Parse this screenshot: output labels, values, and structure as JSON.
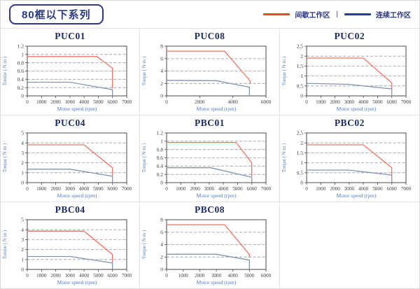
{
  "page": {
    "title": "80框以下系列",
    "legend": {
      "items": [
        {
          "label": "间歇工作区",
          "color": "#e8492e"
        },
        {
          "label": "连续工作区",
          "color": "#27418f"
        }
      ],
      "separator": "|"
    }
  },
  "colors": {
    "navy": "#2c3a85",
    "chart_title": "#1c2b5e",
    "tick": "#3a3a46",
    "axis_label": "#4a7abf",
    "grid": "#999999",
    "plot_border": "#4a4a4a",
    "cell_border": "#e3e3e3",
    "red_series": "#ef7163",
    "blue_series": "#8592b5"
  },
  "chart_data": [
    {
      "type": "line",
      "title": "PUC01",
      "xlabel": "Motor speed (rpm)",
      "ylabel": "Torque ( N·m )",
      "xlim": [
        0,
        7000
      ],
      "ylim": [
        0,
        1.2
      ],
      "xticks": [
        0,
        1000,
        2000,
        3000,
        4000,
        5000,
        6000,
        7000
      ],
      "yticks": [
        0,
        0.2,
        0.4,
        0.6,
        0.8,
        1,
        1.2
      ],
      "grid": "horizontal-dashed",
      "legend_position": "none",
      "series": [
        {
          "name": "间歇工作区",
          "color": "#ef7163",
          "points": [
            [
              0,
              0.95
            ],
            [
              4900,
              0.95
            ],
            [
              6000,
              0.67
            ],
            [
              6000,
              0.18
            ]
          ]
        },
        {
          "name": "连续工作区",
          "color": "#8592b5",
          "points": [
            [
              0,
              0.33
            ],
            [
              3000,
              0.33
            ],
            [
              6000,
              0.15
            ],
            [
              6000,
              0
            ]
          ]
        }
      ]
    },
    {
      "type": "line",
      "title": "PUC08",
      "xlabel": "Motor speed (rpm)",
      "ylabel": "Torque ( N·m )",
      "xlim": [
        0,
        6000
      ],
      "ylim": [
        0,
        8
      ],
      "xticks": [
        0,
        2000,
        4000,
        6000
      ],
      "yticks": [
        0,
        2,
        4,
        6,
        8
      ],
      "grid": "horizontal-dashed",
      "legend_position": "none",
      "series": [
        {
          "name": "间歇工作区",
          "color": "#ef7163",
          "points": [
            [
              0,
              7.2
            ],
            [
              3500,
              7.2
            ],
            [
              5050,
              2.4
            ],
            [
              5050,
              2.0
            ]
          ]
        },
        {
          "name": "连续工作区",
          "color": "#8592b5",
          "points": [
            [
              0,
              2.5
            ],
            [
              3000,
              2.45
            ],
            [
              5000,
              1.4
            ],
            [
              5000,
              0
            ]
          ]
        }
      ]
    },
    {
      "type": "line",
      "title": "PUC02",
      "xlabel": "Motor speed (rpm)",
      "ylabel": "Torque ( N·m )",
      "xlim": [
        0,
        7000
      ],
      "ylim": [
        0,
        2.5
      ],
      "xticks": [
        0,
        1000,
        2000,
        3000,
        4000,
        5000,
        6000,
        7000
      ],
      "yticks": [
        0,
        0.5,
        1,
        1.5,
        2,
        2.5
      ],
      "grid": "horizontal-dashed",
      "legend_position": "none",
      "series": [
        {
          "name": "间歇工作区",
          "color": "#ef7163",
          "points": [
            [
              0,
              1.9
            ],
            [
              4000,
              1.9
            ],
            [
              6000,
              0.65
            ],
            [
              6000,
              0.35
            ]
          ]
        },
        {
          "name": "连续工作区",
          "color": "#8592b5",
          "points": [
            [
              0,
              0.63
            ],
            [
              3000,
              0.58
            ],
            [
              6000,
              0.35
            ],
            [
              6000,
              0
            ]
          ]
        }
      ]
    },
    {
      "type": "line",
      "title": "PUC04",
      "xlabel": "Motor speed (rpm)",
      "ylabel": "Torque ( N·m )",
      "xlim": [
        0,
        7000
      ],
      "ylim": [
        0,
        5
      ],
      "xticks": [
        0,
        1000,
        2000,
        3000,
        4000,
        5000,
        6000,
        7000
      ],
      "yticks": [
        0,
        1,
        2,
        3,
        4,
        5
      ],
      "grid": "horizontal-dashed",
      "legend_position": "none",
      "series": [
        {
          "name": "间歇工作区",
          "color": "#ef7163",
          "points": [
            [
              0,
              3.8
            ],
            [
              4000,
              3.8
            ],
            [
              6000,
              1.5
            ],
            [
              6000,
              0.7
            ]
          ]
        },
        {
          "name": "连续工作区",
          "color": "#8592b5",
          "points": [
            [
              0,
              1.35
            ],
            [
              3000,
              1.35
            ],
            [
              6000,
              0.65
            ],
            [
              6000,
              0
            ]
          ]
        }
      ]
    },
    {
      "type": "line",
      "title": "PBC01",
      "xlabel": "Motor speed (rpm)",
      "ylabel": "Torque ( N·m )",
      "xlim": [
        0,
        7000
      ],
      "ylim": [
        0,
        1.2
      ],
      "xticks": [
        0,
        1000,
        2000,
        3000,
        4000,
        5000,
        6000,
        7000
      ],
      "yticks": [
        0,
        0.2,
        0.4,
        0.6,
        0.8,
        1,
        1.2
      ],
      "grid": "horizontal-dashed",
      "legend_position": "none",
      "series": [
        {
          "name": "间歇工作区",
          "color": "#ef7163",
          "points": [
            [
              0,
              0.97
            ],
            [
              4900,
              0.97
            ],
            [
              6000,
              0.48
            ],
            [
              6000,
              0.15
            ]
          ]
        },
        {
          "name": "连续工作区",
          "color": "#8592b5",
          "points": [
            [
              0,
              0.36
            ],
            [
              3100,
              0.36
            ],
            [
              6000,
              0.13
            ],
            [
              6000,
              0
            ]
          ]
        }
      ]
    },
    {
      "type": "line",
      "title": "PBC02",
      "xlabel": "Motor speed (rpm)",
      "ylabel": "Torque ( N·m )",
      "xlim": [
        0,
        7000
      ],
      "ylim": [
        0,
        2.5
      ],
      "xticks": [
        0,
        1000,
        2000,
        3000,
        4000,
        5000,
        6000,
        7000
      ],
      "yticks": [
        0,
        0.5,
        1,
        1.5,
        2,
        2.5
      ],
      "grid": "horizontal-dashed",
      "legend_position": "none",
      "series": [
        {
          "name": "间歇工作区",
          "color": "#ef7163",
          "points": [
            [
              0,
              1.9
            ],
            [
              4000,
              1.9
            ],
            [
              6000,
              0.75
            ],
            [
              6000,
              0.4
            ]
          ]
        },
        {
          "name": "连续工作区",
          "color": "#8592b5",
          "points": [
            [
              0,
              0.63
            ],
            [
              3000,
              0.63
            ],
            [
              6000,
              0.38
            ],
            [
              6000,
              0
            ]
          ]
        }
      ]
    },
    {
      "type": "line",
      "title": "PBC04",
      "xlabel": "Motor speed (rpm)",
      "ylabel": "Torque ( N·m )",
      "xlim": [
        0,
        7000
      ],
      "ylim": [
        0,
        5
      ],
      "xticks": [
        0,
        1000,
        2000,
        3000,
        4000,
        5000,
        6000,
        7000
      ],
      "yticks": [
        0,
        1,
        2,
        3,
        4,
        5
      ],
      "grid": "horizontal-dashed",
      "legend_position": "none",
      "series": [
        {
          "name": "间歇工作区",
          "color": "#ef7163",
          "points": [
            [
              0,
              3.85
            ],
            [
              4000,
              3.85
            ],
            [
              6000,
              1.5
            ],
            [
              6000,
              0.7
            ]
          ]
        },
        {
          "name": "连续工作区",
          "color": "#8592b5",
          "points": [
            [
              0,
              1.3
            ],
            [
              3000,
              1.3
            ],
            [
              6000,
              0.65
            ],
            [
              6000,
              0
            ]
          ]
        }
      ]
    },
    {
      "type": "line",
      "title": "PBC08",
      "xlabel": "Motor speed (rpm)",
      "ylabel": "Torque ( N·m )",
      "xlim": [
        0,
        6000
      ],
      "ylim": [
        0,
        8
      ],
      "xticks": [
        0,
        1000,
        2000,
        3000,
        4000,
        5000,
        6000
      ],
      "yticks": [
        0,
        2,
        4,
        6,
        8
      ],
      "grid": "horizontal-dashed",
      "legend_position": "none",
      "series": [
        {
          "name": "间歇工作区",
          "color": "#ef7163",
          "points": [
            [
              0,
              7.2
            ],
            [
              3500,
              7.2
            ],
            [
              5000,
              2.4
            ],
            [
              5000,
              2.0
            ]
          ]
        },
        {
          "name": "连续工作区",
          "color": "#8592b5",
          "points": [
            [
              0,
              2.45
            ],
            [
              3000,
              2.45
            ],
            [
              5000,
              1.5
            ],
            [
              5000,
              0
            ]
          ]
        }
      ]
    }
  ]
}
